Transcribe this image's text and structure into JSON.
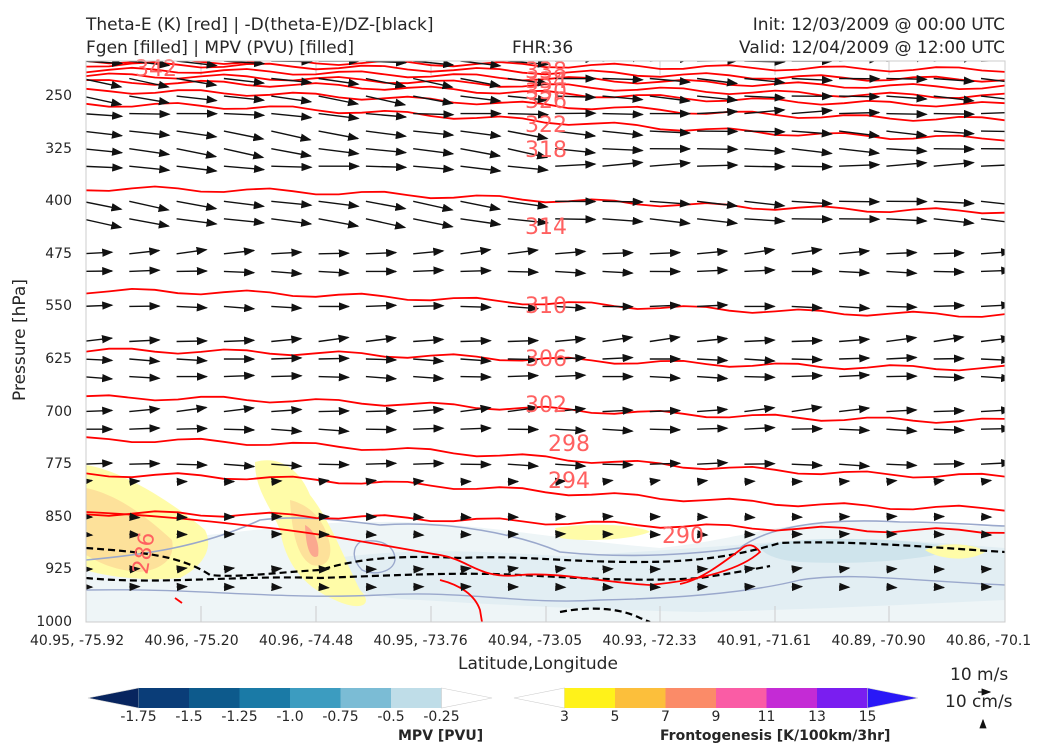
{
  "header": {
    "title_left_1": "Theta-E (K) [red] | -D(theta-E)/DZ-[black]",
    "title_left_2": "Fgen [filled] | MPV (PVU) [filled]",
    "title_center": "FHR:36",
    "title_right_1": "Init: 12/03/2009 @ 00:00 UTC",
    "title_right_2": "Valid: 12/04/2009 @ 12:00 UTC"
  },
  "chart_data": {
    "type": "cross-section",
    "xlabel": "Latitude,Longitude",
    "ylabel": "Pressure [hPa]",
    "ylim": [
      1000,
      200
    ],
    "y_ticks": [
      "250",
      "325",
      "400",
      "475",
      "550",
      "625",
      "700",
      "775",
      "850",
      "925",
      "1000"
    ],
    "x_ticks": [
      "40.95, -75.92",
      "40.96, -75.20",
      "40.96, -74.48",
      "40.95, -73.76",
      "40.94, -73.05",
      "40.93, -72.33",
      "40.91, -71.61",
      "40.89, -70.90",
      "40.86, -70.1"
    ],
    "theta_e_labels": [
      "338",
      "334",
      "330",
      "326",
      "322",
      "318",
      "314",
      "310",
      "306",
      "302",
      "298",
      "294",
      "290",
      "286",
      "342"
    ],
    "theta_e_contours": [
      {
        "value": 342,
        "p_left": 200,
        "p_right": 212
      },
      {
        "value": 338,
        "p_left": 205,
        "p_right": 226
      },
      {
        "value": 334,
        "p_left": 213,
        "p_right": 237
      },
      {
        "value": 330,
        "p_left": 221,
        "p_right": 250
      },
      {
        "value": 326,
        "p_left": 230,
        "p_right": 262
      },
      {
        "value": 322,
        "p_left": 243,
        "p_right": 283
      },
      {
        "value": 318,
        "p_left": 262,
        "p_right": 310
      },
      {
        "value": 314,
        "p_left": 382,
        "p_right": 414
      },
      {
        "value": 310,
        "p_left": 528,
        "p_right": 562
      },
      {
        "value": 306,
        "p_left": 613,
        "p_right": 638
      },
      {
        "value": 302,
        "p_left": 680,
        "p_right": 713
      },
      {
        "value": 298,
        "p_left": 740,
        "p_right": 792
      },
      {
        "value": 294,
        "p_left": 790,
        "p_right": 838
      },
      {
        "value": 290,
        "p_left": 845,
        "p_right": 870
      }
    ],
    "wind_levels_hPa": [
      200,
      225,
      250,
      275,
      300,
      325,
      350,
      400,
      425,
      475,
      500,
      550,
      600,
      625,
      650,
      700,
      725,
      775,
      800,
      850,
      875,
      925,
      950
    ],
    "colorbar_mpv": {
      "label": "MPV [PVU]",
      "ticks": [
        "-1.75",
        "-1.5",
        "-1.25",
        "-1.0",
        "-0.75",
        "-0.5",
        "-0.25"
      ],
      "colors": [
        "#08255f",
        "#0a3d78",
        "#0d5a8c",
        "#1a7aa6",
        "#3c9cc0",
        "#7bbcd5",
        "#bfdde8",
        "#ffffff"
      ]
    },
    "colorbar_fgen": {
      "label": "Frontogenesis [K/100km/3hr]",
      "ticks": [
        "3",
        "5",
        "7",
        "9",
        "11",
        "13",
        "15"
      ],
      "colors": [
        "#ffffff",
        "#fff21a",
        "#fcbf3b",
        "#fb8b68",
        "#fa5ca5",
        "#c42bd5",
        "#7a1ef0",
        "#2a18f7"
      ]
    },
    "wind_key": [
      "10 m/s",
      "10 cm/s"
    ],
    "colors": {
      "theta_e": "#ff0000",
      "label": "#ff6060",
      "arrows": "#111111",
      "mpv_line": "#9aa8cc"
    }
  }
}
